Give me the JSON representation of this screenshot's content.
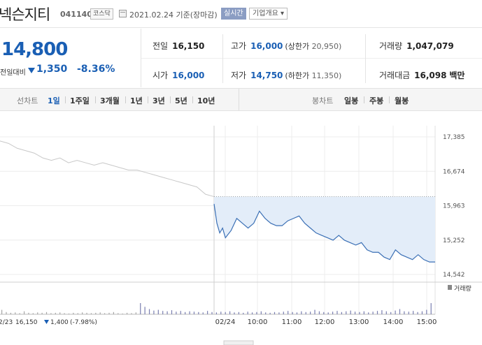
{
  "header": {
    "title": "넥슨지티",
    "code": "041140",
    "market_badge": "코스닥",
    "date_text": "2021.02.24 기준(장마감)",
    "realtime_label": "실시간",
    "company_info_label": "기업개요 ▾"
  },
  "price": {
    "current": "14,800",
    "change_label": "전일대비",
    "change": "1,350",
    "change_pct": "-8.36%"
  },
  "stats": {
    "prev_close_label": "전일",
    "prev_close": "16,150",
    "high_label": "고가",
    "high": "16,000",
    "upper_limit_label": "(상한가",
    "upper_limit": "20,950)",
    "volume_label": "거래량",
    "volume": "1,047,079",
    "open_label": "시가",
    "open": "16,000",
    "low_label": "저가",
    "low": "14,750",
    "lower_limit_label": "(하한가",
    "lower_limit": "11,350)",
    "amount_label": "거래대금",
    "amount": "16,098",
    "amount_unit": "백만"
  },
  "period_bar": {
    "line_chart_label": "선차트",
    "line_options": [
      "1일",
      "1주일",
      "3개월",
      "1년",
      "3년",
      "5년",
      "10년"
    ],
    "selected": "1일",
    "candle_chart_label": "봉차트",
    "candle_options": [
      "일봉",
      "주봉",
      "월봉"
    ]
  },
  "colors": {
    "accent_blue": "#1a5fb4",
    "line_today": "#3a6fb5",
    "fill_today": "#e3edf9",
    "line_prev": "#c8c8c8"
  },
  "chart_data": {
    "type": "line",
    "y_ticks": [
      "17,385",
      "16,674",
      "15,963",
      "15,252",
      "14,542"
    ],
    "ylim": [
      14542,
      17385
    ],
    "x_ticks": [
      "02/24",
      "10:00",
      "11:00",
      "12:00",
      "13:00",
      "14:00",
      "15:00"
    ],
    "reference_price": 16150,
    "volume_label": "거래량",
    "footer_prev_day": {
      "date": "2/23",
      "price": "16,150",
      "change": "1,400",
      "pct": "(-7.98%)"
    },
    "prev_day_series": {
      "name": "",
      "values": [
        17300,
        17250,
        17150,
        17100,
        17050,
        16950,
        16900,
        16950,
        16850,
        16900,
        16850,
        16800,
        16850,
        16800,
        16750,
        16700,
        16700,
        16650,
        16600,
        16550,
        16500,
        16450,
        16400,
        16350,
        16200,
        16150
      ]
    },
    "today_series": {
      "name": "",
      "x": [
        "09:00",
        "09:05",
        "09:10",
        "09:15",
        "09:20",
        "09:30",
        "09:40",
        "09:50",
        "10:00",
        "10:10",
        "10:20",
        "10:30",
        "10:40",
        "10:50",
        "11:00",
        "11:10",
        "11:20",
        "11:30",
        "11:40",
        "11:50",
        "12:00",
        "12:10",
        "12:20",
        "12:30",
        "12:40",
        "12:50",
        "13:00",
        "13:10",
        "13:20",
        "13:30",
        "13:40",
        "13:50",
        "14:00",
        "14:10",
        "14:20",
        "14:30",
        "14:40",
        "14:50",
        "15:00",
        "15:10",
        "15:20",
        "15:30"
      ],
      "values": [
        16000,
        15600,
        15400,
        15500,
        15300,
        15450,
        15700,
        15600,
        15500,
        15600,
        15850,
        15700,
        15600,
        15550,
        15550,
        15650,
        15700,
        15750,
        15600,
        15500,
        15400,
        15350,
        15300,
        15250,
        15350,
        15250,
        15200,
        15150,
        15200,
        15050,
        15000,
        15000,
        14900,
        14850,
        15050,
        14950,
        14900,
        14850,
        14950,
        14850,
        14800,
        14800
      ]
    },
    "volume_values": [
      12,
      6,
      4,
      5,
      3,
      8,
      4,
      3,
      5,
      4,
      6,
      3,
      4,
      5,
      3,
      2,
      4,
      3,
      5,
      4,
      3,
      4,
      5,
      3,
      4,
      6,
      3,
      2,
      4,
      3,
      5,
      30,
      20,
      14,
      10,
      12,
      9,
      8,
      11,
      7,
      9,
      6,
      8,
      7,
      6,
      5,
      9,
      6,
      5,
      7,
      6,
      8,
      5,
      6,
      4,
      7,
      5,
      6,
      8,
      5,
      4,
      6,
      5,
      7,
      9,
      6,
      5,
      8,
      6,
      7,
      12,
      8,
      6,
      5,
      7,
      9,
      6,
      8,
      10,
      7,
      6,
      8,
      5,
      7,
      9,
      11,
      8,
      6,
      10,
      14,
      8,
      7,
      9,
      6,
      8,
      12,
      30
    ]
  }
}
